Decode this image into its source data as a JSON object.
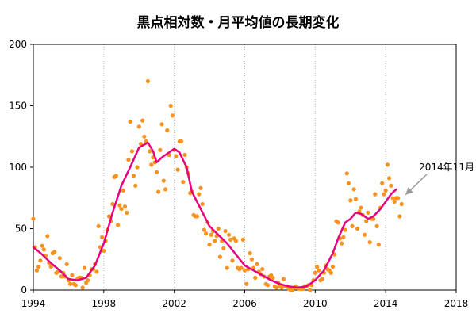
{
  "chart_data": {
    "type": "scatter",
    "title": "黒点相対数・月平均値の長期変化",
    "xlabel": "",
    "ylabel": "",
    "xlim": [
      1994,
      2018
    ],
    "ylim": [
      0,
      200
    ],
    "x_ticks": [
      1994,
      1998,
      2002,
      2006,
      2010,
      2014,
      2018
    ],
    "y_ticks": [
      0,
      50,
      100,
      150,
      200
    ],
    "grid": {
      "vertical": true,
      "horizontal": false
    },
    "legend": "none",
    "colors": {
      "monthly": "#f7931e",
      "smoothed": "#e6007e",
      "annotation_arrow": "#999999"
    },
    "series": [
      {
        "kind": "scatter",
        "points": [
          [
            1994.0,
            58
          ],
          [
            1994.1,
            35
          ],
          [
            1994.2,
            16
          ],
          [
            1994.3,
            19
          ],
          [
            1994.4,
            24
          ],
          [
            1994.5,
            36
          ],
          [
            1994.6,
            33
          ],
          [
            1994.7,
            28
          ],
          [
            1994.8,
            44
          ],
          [
            1994.9,
            22
          ],
          [
            1995.0,
            19
          ],
          [
            1995.1,
            30
          ],
          [
            1995.2,
            31
          ],
          [
            1995.3,
            14
          ],
          [
            1995.4,
            15
          ],
          [
            1995.5,
            26
          ],
          [
            1995.6,
            11
          ],
          [
            1995.7,
            14
          ],
          [
            1995.8,
            11
          ],
          [
            1995.9,
            21
          ],
          [
            1996.0,
            8
          ],
          [
            1996.1,
            5
          ],
          [
            1996.2,
            12
          ],
          [
            1996.3,
            5
          ],
          [
            1996.4,
            4
          ],
          [
            1996.5,
            9
          ],
          [
            1996.6,
            10
          ],
          [
            1996.7,
            10
          ],
          [
            1996.8,
            2
          ],
          [
            1996.9,
            18
          ],
          [
            1997.0,
            6
          ],
          [
            1997.1,
            8
          ],
          [
            1997.2,
            12
          ],
          [
            1997.3,
            17
          ],
          [
            1997.4,
            17
          ],
          [
            1997.5,
            21
          ],
          [
            1997.6,
            15
          ],
          [
            1997.7,
            52
          ],
          [
            1997.8,
            35
          ],
          [
            1997.9,
            43
          ],
          [
            1998.0,
            32
          ],
          [
            1998.1,
            40
          ],
          [
            1998.2,
            49
          ],
          [
            1998.3,
            60
          ],
          [
            1998.4,
            56
          ],
          [
            1998.5,
            70
          ],
          [
            1998.6,
            92
          ],
          [
            1998.7,
            93
          ],
          [
            1998.8,
            53
          ],
          [
            1998.9,
            69
          ],
          [
            1999.0,
            66
          ],
          [
            1999.1,
            81
          ],
          [
            1999.2,
            68
          ],
          [
            1999.3,
            63
          ],
          [
            1999.4,
            106
          ],
          [
            1999.5,
            137
          ],
          [
            1999.6,
            113
          ],
          [
            1999.7,
            93
          ],
          [
            1999.8,
            85
          ],
          [
            1999.9,
            100
          ],
          [
            2000.0,
            133
          ],
          [
            2000.1,
            119
          ],
          [
            2000.2,
            138
          ],
          [
            2000.3,
            125
          ],
          [
            2000.4,
            121
          ],
          [
            2000.5,
            170
          ],
          [
            2000.6,
            113
          ],
          [
            2000.7,
            102
          ],
          [
            2000.8,
            108
          ],
          [
            2000.9,
            104
          ],
          [
            2001.0,
            96
          ],
          [
            2001.1,
            80
          ],
          [
            2001.2,
            114
          ],
          [
            2001.3,
            135
          ],
          [
            2001.4,
            89
          ],
          [
            2001.5,
            82
          ],
          [
            2001.6,
            130
          ],
          [
            2001.7,
            110
          ],
          [
            2001.8,
            150
          ],
          [
            2001.9,
            142
          ],
          [
            2002.0,
            114
          ],
          [
            2002.1,
            109
          ],
          [
            2002.2,
            98
          ],
          [
            2002.3,
            121
          ],
          [
            2002.4,
            121
          ],
          [
            2002.5,
            88
          ],
          [
            2002.6,
            110
          ],
          [
            2002.7,
            100
          ],
          [
            2002.8,
            95
          ],
          [
            2002.9,
            79
          ],
          [
            2003.0,
            80
          ],
          [
            2003.1,
            61
          ],
          [
            2003.2,
            60
          ],
          [
            2003.3,
            60
          ],
          [
            2003.4,
            78
          ],
          [
            2003.5,
            83
          ],
          [
            2003.6,
            70
          ],
          [
            2003.7,
            49
          ],
          [
            2003.8,
            46
          ],
          [
            2003.9,
            55
          ],
          [
            2004.0,
            37
          ],
          [
            2004.1,
            45
          ],
          [
            2004.2,
            48
          ],
          [
            2004.3,
            40
          ],
          [
            2004.4,
            44
          ],
          [
            2004.5,
            50
          ],
          [
            2004.6,
            27
          ],
          [
            2004.7,
            40
          ],
          [
            2004.8,
            34
          ],
          [
            2004.9,
            48
          ],
          [
            2005.0,
            18
          ],
          [
            2005.1,
            45
          ],
          [
            2005.2,
            41
          ],
          [
            2005.3,
            24
          ],
          [
            2005.4,
            42
          ],
          [
            2005.5,
            40
          ],
          [
            2005.6,
            18
          ],
          [
            2005.7,
            17
          ],
          [
            2005.8,
            18
          ],
          [
            2005.9,
            41
          ],
          [
            2006.0,
            16
          ],
          [
            2006.1,
            5
          ],
          [
            2006.2,
            17
          ],
          [
            2006.3,
            30
          ],
          [
            2006.4,
            25
          ],
          [
            2006.5,
            18
          ],
          [
            2006.6,
            10
          ],
          [
            2006.7,
            21
          ],
          [
            2006.8,
            15
          ],
          [
            2006.9,
            13
          ],
          [
            2007.0,
            17
          ],
          [
            2007.1,
            11
          ],
          [
            2007.2,
            5
          ],
          [
            2007.3,
            4
          ],
          [
            2007.4,
            11
          ],
          [
            2007.5,
            12
          ],
          [
            2007.6,
            10
          ],
          [
            2007.7,
            3
          ],
          [
            2007.8,
            2
          ],
          [
            2007.9,
            6
          ],
          [
            2008.0,
            3
          ],
          [
            2008.1,
            2
          ],
          [
            2008.2,
            9
          ],
          [
            2008.3,
            3
          ],
          [
            2008.4,
            3
          ],
          [
            2008.5,
            1
          ],
          [
            2008.6,
            0
          ],
          [
            2008.7,
            0
          ],
          [
            2008.8,
            2
          ],
          [
            2008.9,
            3
          ],
          [
            2009.0,
            2
          ],
          [
            2009.1,
            1
          ],
          [
            2009.2,
            1
          ],
          [
            2009.3,
            1
          ],
          [
            2009.4,
            3
          ],
          [
            2009.5,
            3
          ],
          [
            2009.6,
            4
          ],
          [
            2009.7,
            0
          ],
          [
            2009.8,
            4
          ],
          [
            2009.9,
            8
          ],
          [
            2010.0,
            14
          ],
          [
            2010.1,
            19
          ],
          [
            2010.2,
            16
          ],
          [
            2010.3,
            8
          ],
          [
            2010.4,
            9
          ],
          [
            2010.5,
            14
          ],
          [
            2010.6,
            20
          ],
          [
            2010.7,
            17
          ],
          [
            2010.8,
            16
          ],
          [
            2010.9,
            14
          ],
          [
            2011.0,
            19
          ],
          [
            2011.1,
            29
          ],
          [
            2011.2,
            56
          ],
          [
            2011.3,
            55
          ],
          [
            2011.4,
            42
          ],
          [
            2011.5,
            38
          ],
          [
            2011.6,
            43
          ],
          [
            2011.7,
            49
          ],
          [
            2011.8,
            95
          ],
          [
            2011.9,
            87
          ],
          [
            2012.0,
            73
          ],
          [
            2012.1,
            52
          ],
          [
            2012.2,
            82
          ],
          [
            2012.3,
            74
          ],
          [
            2012.4,
            50
          ],
          [
            2012.5,
            64
          ],
          [
            2012.6,
            67
          ],
          [
            2012.7,
            61
          ],
          [
            2012.8,
            45
          ],
          [
            2012.9,
            56
          ],
          [
            2013.0,
            63
          ],
          [
            2013.1,
            39
          ],
          [
            2013.2,
            58
          ],
          [
            2013.3,
            58
          ],
          [
            2013.4,
            78
          ],
          [
            2013.5,
            52
          ],
          [
            2013.6,
            37
          ],
          [
            2013.7,
            67
          ],
          [
            2013.8,
            87
          ],
          [
            2013.9,
            78
          ],
          [
            2014.0,
            81
          ],
          [
            2014.1,
            102
          ],
          [
            2014.2,
            91
          ],
          [
            2014.3,
            85
          ],
          [
            2014.4,
            75
          ],
          [
            2014.5,
            72
          ],
          [
            2014.6,
            75
          ],
          [
            2014.7,
            75
          ],
          [
            2014.8,
            60
          ],
          [
            2014.9,
            70
          ]
        ]
      },
      {
        "kind": "line",
        "points": [
          [
            1994.0,
            35
          ],
          [
            1994.5,
            29
          ],
          [
            1995.0,
            22
          ],
          [
            1995.5,
            16
          ],
          [
            1996.0,
            9
          ],
          [
            1996.5,
            8
          ],
          [
            1997.0,
            10
          ],
          [
            1997.5,
            20
          ],
          [
            1998.0,
            38
          ],
          [
            1998.5,
            63
          ],
          [
            1999.0,
            85
          ],
          [
            1999.5,
            100
          ],
          [
            2000.0,
            116
          ],
          [
            2000.5,
            120
          ],
          [
            2000.8,
            113
          ],
          [
            2001.0,
            104
          ],
          [
            2001.3,
            108
          ],
          [
            2001.5,
            110
          ],
          [
            2001.8,
            113
          ],
          [
            2002.0,
            115
          ],
          [
            2002.3,
            112
          ],
          [
            2002.7,
            100
          ],
          [
            2003.0,
            80
          ],
          [
            2003.5,
            66
          ],
          [
            2004.0,
            52
          ],
          [
            2004.5,
            45
          ],
          [
            2005.0,
            38
          ],
          [
            2005.5,
            29
          ],
          [
            2006.0,
            20
          ],
          [
            2006.5,
            16
          ],
          [
            2007.0,
            12
          ],
          [
            2007.5,
            8
          ],
          [
            2008.0,
            5
          ],
          [
            2008.5,
            3
          ],
          [
            2009.0,
            2
          ],
          [
            2009.5,
            3
          ],
          [
            2010.0,
            8
          ],
          [
            2010.5,
            16
          ],
          [
            2011.0,
            30
          ],
          [
            2011.3,
            42
          ],
          [
            2011.7,
            55
          ],
          [
            2012.0,
            58
          ],
          [
            2012.3,
            63
          ],
          [
            2012.6,
            62
          ],
          [
            2013.0,
            58
          ],
          [
            2013.3,
            60
          ],
          [
            2013.7,
            66
          ],
          [
            2014.0,
            72
          ],
          [
            2014.3,
            78
          ],
          [
            2014.6,
            82
          ]
        ]
      }
    ],
    "annotations": [
      {
        "text": "2014年11月",
        "arrow_to": [
          2014.9,
          75
        ]
      }
    ]
  }
}
